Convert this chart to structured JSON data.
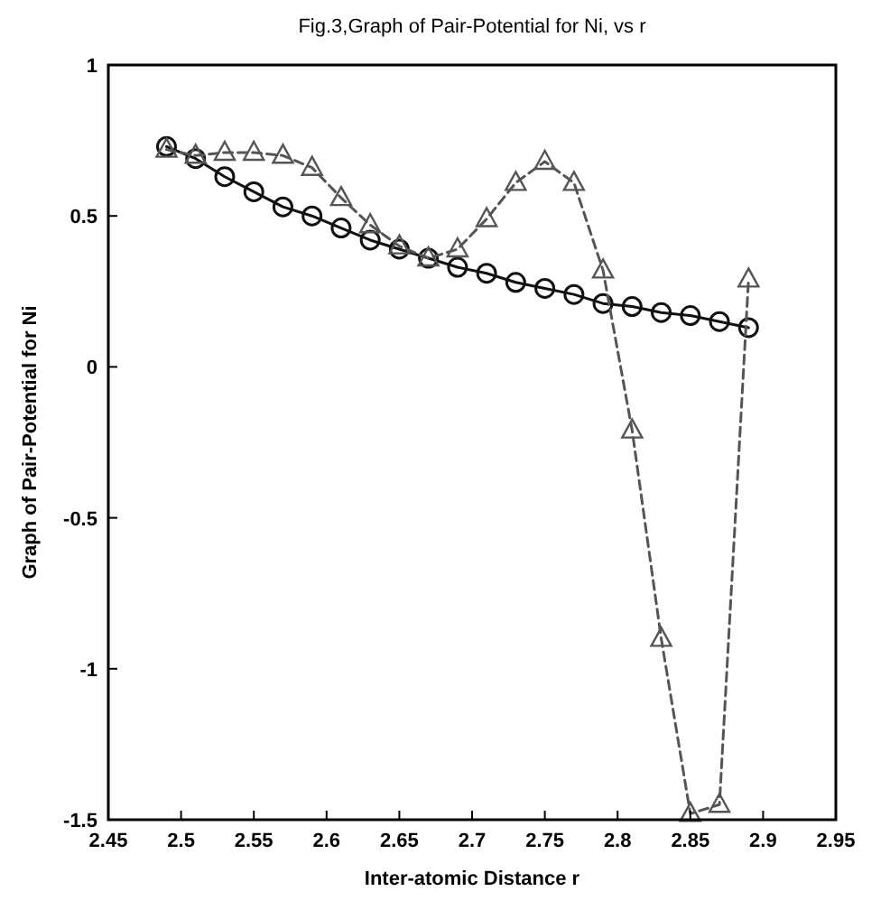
{
  "chart_data": {
    "type": "line",
    "title": "Fig.3,Graph of Pair-Potential for Ni, vs r",
    "xlabel": "Inter-atomic Distance r",
    "ylabel": "Graph of Pair-Potential for Ni",
    "x": [
      2.49,
      2.51,
      2.53,
      2.55,
      2.57,
      2.59,
      2.61,
      2.63,
      2.65,
      2.67,
      2.69,
      2.71,
      2.73,
      2.75,
      2.77,
      2.79,
      2.81,
      2.83,
      2.85,
      2.87,
      2.89
    ],
    "series": [
      {
        "color": "#111111",
        "marker": "circle",
        "line_style": "solid",
        "values": [
          0.73,
          0.69,
          0.63,
          0.58,
          0.53,
          0.5,
          0.46,
          0.42,
          0.39,
          0.36,
          0.33,
          0.31,
          0.28,
          0.26,
          0.24,
          0.21,
          0.2,
          0.18,
          0.17,
          0.15,
          0.13
        ]
      },
      {
        "color": "#555555",
        "marker": "triangle",
        "line_style": "dashed",
        "values": [
          0.72,
          0.7,
          0.71,
          0.71,
          0.7,
          0.66,
          0.56,
          0.47,
          0.4,
          0.36,
          0.39,
          0.49,
          0.61,
          0.68,
          0.61,
          0.32,
          -0.21,
          -0.9,
          -1.48,
          -1.45,
          0.29
        ]
      }
    ],
    "xlim": [
      2.45,
      2.95
    ],
    "xticks": [
      2.45,
      2.5,
      2.55,
      2.6,
      2.65,
      2.7,
      2.75,
      2.8,
      2.85,
      2.9,
      2.95
    ],
    "ylim": [
      -1.5,
      1
    ],
    "yticks": [
      -1.5,
      -1,
      -0.5,
      0,
      0.5,
      1
    ],
    "grid": false
  }
}
